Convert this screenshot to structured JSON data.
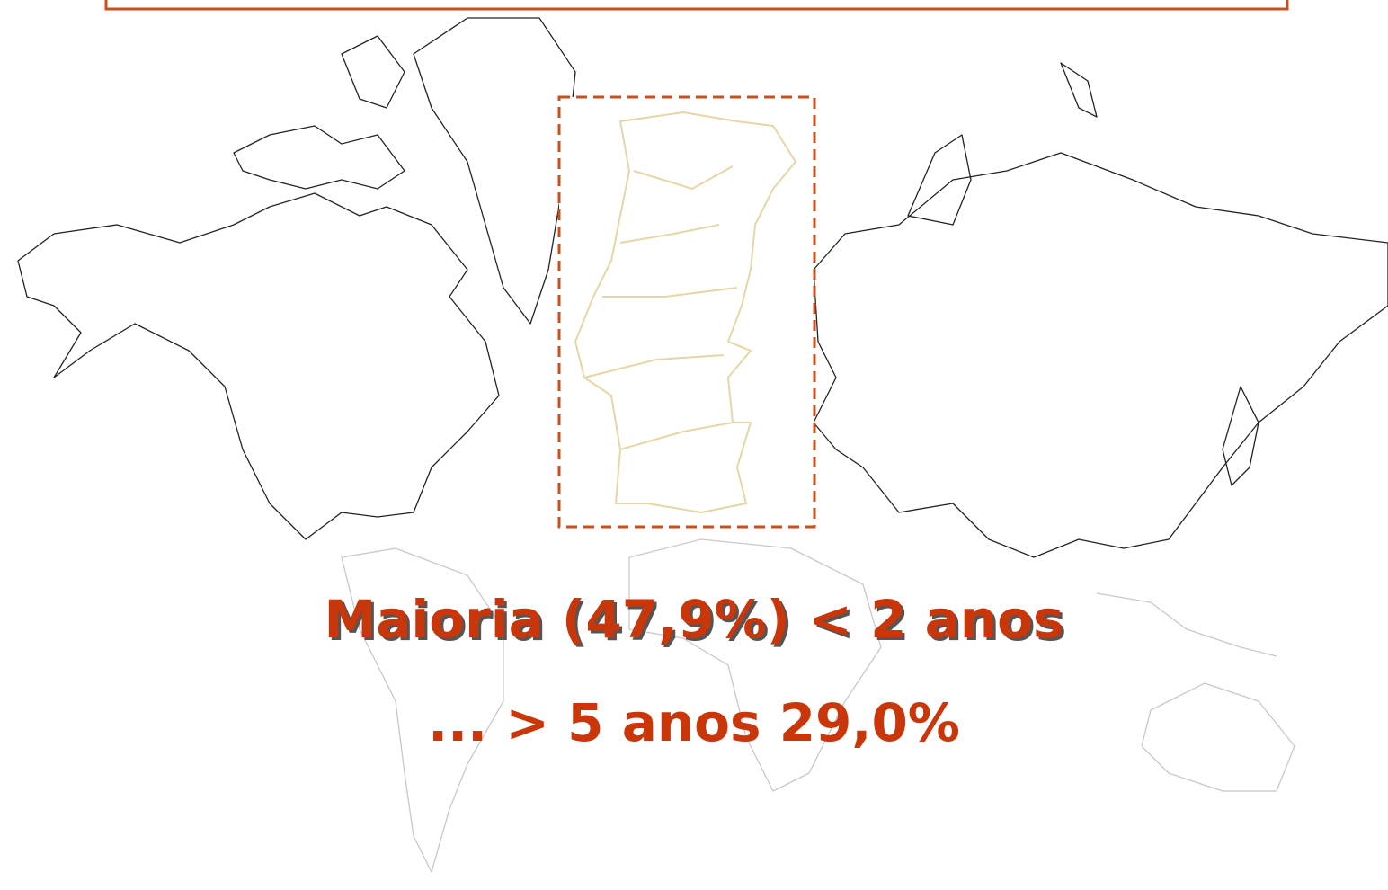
{
  "slide": {
    "line1": "Maioria (47,9%) < 2 anos",
    "line2": "... > 5 anos 29,0%"
  }
}
